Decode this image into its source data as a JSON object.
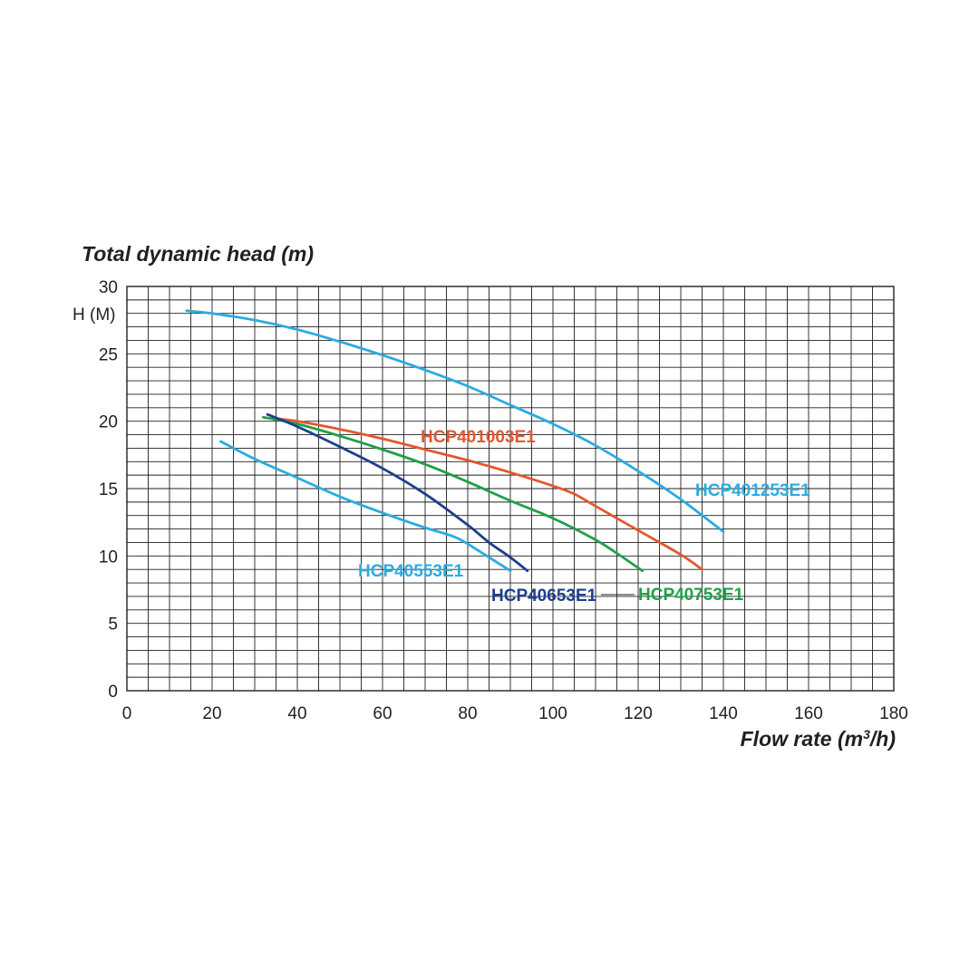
{
  "chart_data": {
    "type": "line",
    "title": "Total dynamic head (m)",
    "ylabel": "H (M)",
    "xlabel_main": "Flow rate (m",
    "xlabel_sup": "3",
    "xlabel_end": "/h)",
    "xlim": [
      0,
      180
    ],
    "ylim": [
      0,
      30
    ],
    "x_ticks": [
      "0",
      "20",
      "40",
      "60",
      "80",
      "100",
      "120",
      "140",
      "160",
      "180"
    ],
    "y_ticks": [
      "0",
      "5",
      "10",
      "15",
      "20",
      "25",
      "30"
    ],
    "grid": true,
    "series": [
      {
        "name": "HCP401253E1",
        "color": "#29abe2",
        "points": [
          [
            14,
            28.2
          ],
          [
            20,
            28
          ],
          [
            30,
            27.5
          ],
          [
            40,
            26.8
          ],
          [
            50,
            25.9
          ],
          [
            60,
            24.9
          ],
          [
            70,
            23.8
          ],
          [
            80,
            22.6
          ],
          [
            90,
            21.2
          ],
          [
            100,
            19.8
          ],
          [
            110,
            18.2
          ],
          [
            120,
            16.3
          ],
          [
            130,
            14.2
          ],
          [
            140,
            11.8
          ]
        ]
      },
      {
        "name": "HCP401003E1",
        "color": "#e4572e",
        "points": [
          [
            35,
            20.2
          ],
          [
            40,
            20
          ],
          [
            50,
            19.4
          ],
          [
            60,
            18.7
          ],
          [
            70,
            17.9
          ],
          [
            80,
            17.1
          ],
          [
            90,
            16.2
          ],
          [
            100,
            15.2
          ],
          [
            105,
            14.6
          ],
          [
            110,
            13.7
          ],
          [
            120,
            11.9
          ],
          [
            130,
            10.1
          ],
          [
            135,
            9
          ]
        ]
      },
      {
        "name": "HCP40753E1",
        "color": "#1fa049",
        "points": [
          [
            32,
            20.3
          ],
          [
            40,
            19.8
          ],
          [
            50,
            18.9
          ],
          [
            60,
            17.9
          ],
          [
            70,
            16.8
          ],
          [
            80,
            15.5
          ],
          [
            90,
            14.1
          ],
          [
            100,
            12.8
          ],
          [
            110,
            11.2
          ],
          [
            115,
            10.2
          ],
          [
            121,
            8.9
          ]
        ]
      },
      {
        "name": "HCP40653E1",
        "color": "#1b3f8b",
        "points": [
          [
            33,
            20.5
          ],
          [
            40,
            19.6
          ],
          [
            50,
            18.1
          ],
          [
            60,
            16.5
          ],
          [
            70,
            14.6
          ],
          [
            80,
            12.3
          ],
          [
            85,
            11
          ],
          [
            90,
            9.9
          ],
          [
            94,
            8.9
          ]
        ]
      },
      {
        "name": "HCP40553E1",
        "color": "#29abe2",
        "points": [
          [
            22,
            18.5
          ],
          [
            30,
            17.2
          ],
          [
            40,
            15.8
          ],
          [
            50,
            14.4
          ],
          [
            60,
            13.2
          ],
          [
            70,
            12.1
          ],
          [
            77,
            11.4
          ],
          [
            82,
            10.5
          ],
          [
            86,
            9.7
          ],
          [
            90,
            8.9
          ]
        ]
      }
    ]
  }
}
